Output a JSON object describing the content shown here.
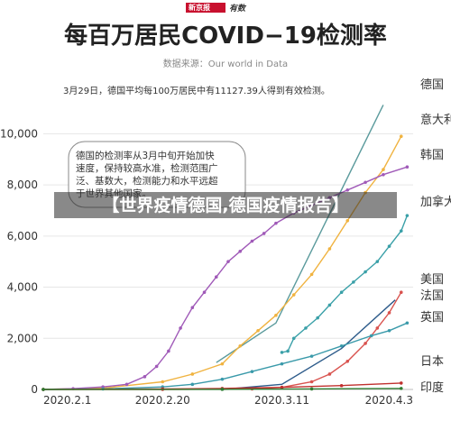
{
  "header": {
    "logo": "新京报",
    "logo_sub": "有数",
    "title": "每百万居民COVID−19检测率",
    "source": "数据来源：Our world in Data"
  },
  "annotations": {
    "top_note": "3月29日，德国平均每100万居民中有11127.39人得到有效检测。",
    "box_lines": [
      "德国的检测率从3月中旬开始加快",
      "速度，保持较高水准，检测范围广",
      "泛、基数大，检测能力和水平远超",
      "于世界其他国家。"
    ]
  },
  "banner": {
    "text": "【世界疫情德国,德国疫情报告】"
  },
  "colors": {
    "germany": "#5a9a9c",
    "italy": "#f0b340",
    "korea": "#a05ab8",
    "canada": "#3aa0a8",
    "usa": "#d9534f",
    "france": "#2d5b8a",
    "uk": "#3a9aaa",
    "japan": "#c0302e",
    "india": "#2e7d32"
  },
  "chart_data": {
    "type": "line",
    "title": "每百万居民COVID−19检测率",
    "xlabel": "",
    "ylabel": "",
    "x_ticks": [
      "2020.2.1",
      "2020.2.20",
      "2020.3.11",
      "2020.4.3"
    ],
    "x_range": [
      0,
      62
    ],
    "ylim": [
      0,
      11000
    ],
    "y_ticks": [
      0,
      2000,
      4000,
      6000,
      8000,
      10000
    ],
    "y_tick_labels": [
      "0",
      "2,000",
      "4,000",
      "6,000",
      "8,000",
      "10,000"
    ],
    "grid": true,
    "legend": "right",
    "series": [
      {
        "name": "德国",
        "key": "germany",
        "marker": false,
        "points": [
          [
            29,
            1050
          ],
          [
            39,
            2600
          ],
          [
            57,
            11127.39
          ]
        ]
      },
      {
        "name": "意大利",
        "key": "italy",
        "marker": true,
        "points": [
          [
            0,
            0
          ],
          [
            10,
            50
          ],
          [
            20,
            300
          ],
          [
            25,
            600
          ],
          [
            30,
            1000
          ],
          [
            33,
            1700
          ],
          [
            36,
            2300
          ],
          [
            39,
            2900
          ],
          [
            42,
            3700
          ],
          [
            45,
            4500
          ],
          [
            48,
            5500
          ],
          [
            51,
            6600
          ],
          [
            54,
            7700
          ],
          [
            57,
            8600
          ],
          [
            60,
            9900
          ]
        ]
      },
      {
        "name": "韩国",
        "key": "korea",
        "marker": true,
        "points": [
          [
            0,
            0
          ],
          [
            5,
            30
          ],
          [
            10,
            100
          ],
          [
            14,
            200
          ],
          [
            17,
            500
          ],
          [
            19,
            900
          ],
          [
            21,
            1500
          ],
          [
            23,
            2400
          ],
          [
            25,
            3200
          ],
          [
            27,
            3800
          ],
          [
            29,
            4400
          ],
          [
            31,
            5000
          ],
          [
            33,
            5400
          ],
          [
            35,
            5800
          ],
          [
            37,
            6100
          ],
          [
            39,
            6500
          ],
          [
            42,
            6900
          ],
          [
            45,
            7200
          ],
          [
            48,
            7500
          ],
          [
            51,
            7800
          ],
          [
            54,
            8100
          ],
          [
            57,
            8400
          ],
          [
            61,
            8700
          ]
        ]
      },
      {
        "name": "加拿大",
        "key": "canada",
        "marker": true,
        "points": [
          [
            40,
            1450
          ],
          [
            41,
            1500
          ],
          [
            42,
            2000
          ],
          [
            44,
            2400
          ],
          [
            46,
            2800
          ],
          [
            48,
            3300
          ],
          [
            50,
            3800
          ],
          [
            52,
            4200
          ],
          [
            54,
            4600
          ],
          [
            56,
            5000
          ],
          [
            58,
            5600
          ],
          [
            60,
            6200
          ],
          [
            61,
            6800
          ]
        ]
      },
      {
        "name": "美国",
        "key": "usa",
        "marker": true,
        "points": [
          [
            0,
            0
          ],
          [
            20,
            0
          ],
          [
            35,
            20
          ],
          [
            40,
            80
          ],
          [
            45,
            300
          ],
          [
            48,
            600
          ],
          [
            51,
            1100
          ],
          [
            54,
            1800
          ],
          [
            56,
            2400
          ],
          [
            58,
            3000
          ],
          [
            60,
            3800
          ]
        ]
      },
      {
        "name": "法国",
        "key": "france",
        "marker": false,
        "points": [
          [
            30,
            0
          ],
          [
            40,
            200
          ],
          [
            50,
            1600
          ],
          [
            59,
            3500
          ]
        ]
      },
      {
        "name": "英国",
        "key": "uk",
        "marker": true,
        "points": [
          [
            0,
            0
          ],
          [
            10,
            20
          ],
          [
            20,
            100
          ],
          [
            25,
            200
          ],
          [
            30,
            400
          ],
          [
            35,
            700
          ],
          [
            40,
            1000
          ],
          [
            45,
            1300
          ],
          [
            50,
            1700
          ],
          [
            55,
            2100
          ],
          [
            58,
            2300
          ],
          [
            61,
            2600
          ]
        ]
      },
      {
        "name": "日本",
        "key": "japan",
        "marker": true,
        "points": [
          [
            0,
            0
          ],
          [
            20,
            20
          ],
          [
            30,
            40
          ],
          [
            40,
            80
          ],
          [
            50,
            150
          ],
          [
            60,
            250
          ]
        ]
      },
      {
        "name": "印度",
        "key": "india",
        "marker": true,
        "points": [
          [
            0,
            0
          ],
          [
            30,
            5
          ],
          [
            45,
            20
          ],
          [
            60,
            40
          ]
        ]
      }
    ]
  }
}
